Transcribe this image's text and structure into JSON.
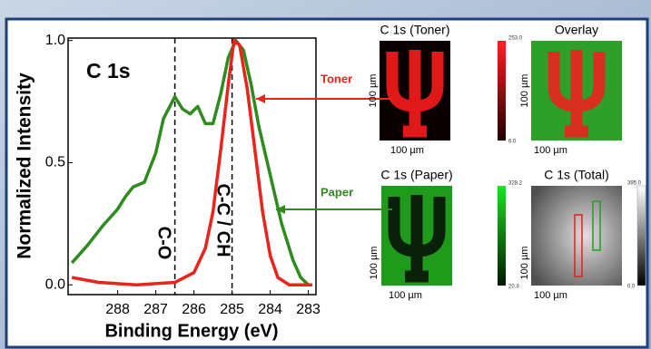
{
  "chart_data": {
    "type": "line",
    "xlabel": "Binding Energy (eV)",
    "ylabel": "Normalized Intensity",
    "xlim": [
      289.3,
      282.8
    ],
    "ylim": [
      -0.04,
      1.01
    ],
    "xticks": [
      288,
      287,
      286,
      285,
      284,
      283
    ],
    "yticks": [
      {
        "value": 0,
        "label": "0.0"
      },
      {
        "value": 0.5,
        "label": "0.5"
      },
      {
        "value": 1,
        "label": "1.0"
      }
    ],
    "annotations": [
      "C 1s",
      "C-O",
      "C-C / CH"
    ],
    "vlines": [
      286.5,
      285.0
    ],
    "series": [
      {
        "name": "Paper",
        "color": "#2e8b1e",
        "x": [
          289.2,
          288.8,
          288.4,
          288.0,
          287.8,
          287.6,
          287.3,
          287.0,
          286.8,
          286.5,
          286.3,
          286.1,
          285.9,
          285.7,
          285.5,
          285.3,
          285.1,
          284.9,
          284.7,
          284.5,
          284.3,
          284.0,
          283.7,
          283.4,
          283.2,
          283.0,
          282.9
        ],
        "values": [
          0.09,
          0.16,
          0.24,
          0.31,
          0.36,
          0.4,
          0.42,
          0.54,
          0.68,
          0.77,
          0.72,
          0.7,
          0.73,
          0.66,
          0.66,
          0.78,
          0.93,
          1.0,
          0.96,
          0.82,
          0.65,
          0.45,
          0.25,
          0.1,
          0.03,
          0.0,
          0.0
        ]
      },
      {
        "name": "Toner",
        "color": "#e8241c",
        "x": [
          289.2,
          288.5,
          287.5,
          286.5,
          286.0,
          285.7,
          285.5,
          285.3,
          285.1,
          284.95,
          284.8,
          284.6,
          284.4,
          284.2,
          284.0,
          283.8,
          283.5,
          282.9
        ],
        "values": [
          0.03,
          0.01,
          0.0,
          0.01,
          0.05,
          0.15,
          0.3,
          0.55,
          0.82,
          1.0,
          0.98,
          0.8,
          0.55,
          0.3,
          0.12,
          0.03,
          0.0,
          0.0
        ]
      }
    ]
  },
  "panels": [
    {
      "title": "C 1s (Toner)",
      "x_scale": "100 µm",
      "y_scale": "100 µm",
      "colorbar": [
        "253.0",
        "6.0"
      ]
    },
    {
      "title": "Overlay",
      "x_scale": "100 µm",
      "y_scale": "100 µm"
    },
    {
      "title": "C 1s (Paper)",
      "x_scale": "100 µm",
      "y_scale": "100 µm",
      "colorbar": [
        "328.2",
        "20.3"
      ]
    },
    {
      "title": "C 1s (Total)",
      "x_scale": "100 µm",
      "y_scale": "100 µm",
      "colorbar": [
        "395.0",
        "0.0"
      ]
    }
  ]
}
